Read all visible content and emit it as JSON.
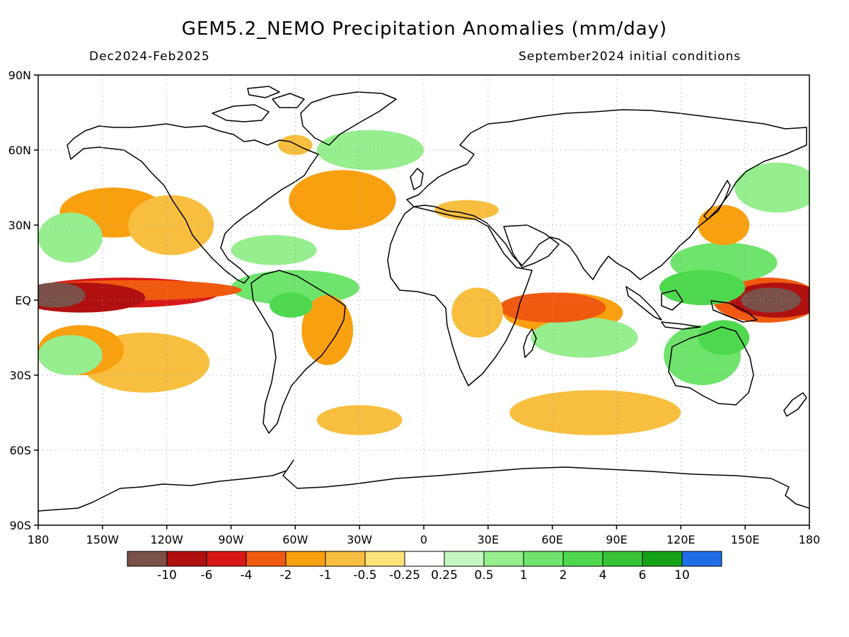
{
  "header": {
    "title": "GEM5.2_NEMO Precipitation Anomalies (mm/day)",
    "period": "Dec2024-Feb2025",
    "init": "September2024 initial conditions"
  },
  "map": {
    "lat_range": [
      -90,
      90
    ],
    "lon_range": [
      -180,
      180
    ],
    "lat_ticks": [
      "90N",
      "60N",
      "30N",
      "EQ",
      "30S",
      "60S",
      "90S"
    ],
    "lon_ticks": [
      "180",
      "150W",
      "120W",
      "90W",
      "60W",
      "30W",
      "0",
      "30E",
      "60E",
      "90E",
      "120E",
      "150E",
      "180"
    ],
    "grid": "dotted",
    "regions": [
      {
        "level": "-10",
        "lon": -172,
        "lat": 2,
        "rx": 14,
        "ry": 5
      },
      {
        "level": "-10",
        "lon": 162,
        "lat": 0,
        "rx": 14,
        "ry": 5
      },
      {
        "level": "-6",
        "lon": -160,
        "lat": 1,
        "rx": 30,
        "ry": 6
      },
      {
        "level": "-6",
        "lon": 165,
        "lat": 0,
        "rx": 22,
        "ry": 7
      },
      {
        "level": "-4",
        "lon": -140,
        "lat": 3,
        "rx": 45,
        "ry": 6
      },
      {
        "level": "-2",
        "lon": -135,
        "lat": 4,
        "rx": 50,
        "ry": 4
      },
      {
        "level": "-2",
        "lon": 60,
        "lat": -3,
        "rx": 25,
        "ry": 6
      },
      {
        "level": "-2",
        "lon": 160,
        "lat": 0,
        "rx": 25,
        "ry": 9
      },
      {
        "level": "-1",
        "lon": -145,
        "lat": 35,
        "rx": 25,
        "ry": 10
      },
      {
        "level": "-1",
        "lon": -160,
        "lat": -20,
        "rx": 20,
        "ry": 10
      },
      {
        "level": "-1",
        "lon": -38,
        "lat": 40,
        "rx": 25,
        "ry": 12
      },
      {
        "level": "-1",
        "lon": -45,
        "lat": -12,
        "rx": 12,
        "ry": 14
      },
      {
        "level": "-1",
        "lon": 65,
        "lat": -5,
        "rx": 28,
        "ry": 8
      },
      {
        "level": "-1",
        "lon": 140,
        "lat": 30,
        "rx": 12,
        "ry": 8
      },
      {
        "level": "-0.5",
        "lon": -118,
        "lat": 30,
        "rx": 20,
        "ry": 12
      },
      {
        "level": "-0.5",
        "lon": -130,
        "lat": -25,
        "rx": 30,
        "ry": 12
      },
      {
        "level": "-0.5",
        "lon": -30,
        "lat": -48,
        "rx": 20,
        "ry": 6
      },
      {
        "level": "-0.5",
        "lon": 80,
        "lat": -45,
        "rx": 40,
        "ry": 9
      },
      {
        "level": "-0.5",
        "lon": 25,
        "lat": -5,
        "rx": 12,
        "ry": 10
      },
      {
        "level": "-0.5",
        "lon": 20,
        "lat": 36,
        "rx": 15,
        "ry": 4
      },
      {
        "level": "-0.5",
        "lon": -60,
        "lat": 62,
        "rx": 8,
        "ry": 4
      },
      {
        "level": "0.5",
        "lon": -165,
        "lat": 25,
        "rx": 15,
        "ry": 10
      },
      {
        "level": "0.5",
        "lon": -165,
        "lat": -22,
        "rx": 15,
        "ry": 8
      },
      {
        "level": "0.5",
        "lon": -70,
        "lat": 20,
        "rx": 20,
        "ry": 6
      },
      {
        "level": "0.5",
        "lon": -25,
        "lat": 60,
        "rx": 25,
        "ry": 8
      },
      {
        "level": "0.5",
        "lon": 75,
        "lat": -15,
        "rx": 25,
        "ry": 8
      },
      {
        "level": "0.5",
        "lon": 165,
        "lat": 45,
        "rx": 20,
        "ry": 10
      },
      {
        "level": "1",
        "lon": -60,
        "lat": 5,
        "rx": 30,
        "ry": 7
      },
      {
        "level": "1",
        "lon": 130,
        "lat": -22,
        "rx": 18,
        "ry": 12
      },
      {
        "level": "1",
        "lon": 140,
        "lat": 15,
        "rx": 25,
        "ry": 8
      },
      {
        "level": "2",
        "lon": 130,
        "lat": 5,
        "rx": 20,
        "ry": 7
      },
      {
        "level": "2",
        "lon": 140,
        "lat": -15,
        "rx": 12,
        "ry": 7
      },
      {
        "level": "2",
        "lon": -62,
        "lat": -2,
        "rx": 10,
        "ry": 5
      }
    ]
  },
  "colorbar": {
    "colors": [
      "#7a5048",
      "#b01010",
      "#d81818",
      "#f05a10",
      "#f9a010",
      "#f8be40",
      "#fde27a",
      "#ffffff",
      "#c4f7c0",
      "#96ee8e",
      "#6fe46c",
      "#4ed84e",
      "#36c436",
      "#16a216",
      "#1f6ee8"
    ],
    "labels": [
      "-10",
      "-6",
      "-4",
      "-2",
      "-1",
      "-0.5",
      "-0.25",
      "0.25",
      "0.5",
      "1",
      "2",
      "4",
      "6",
      "10"
    ]
  }
}
